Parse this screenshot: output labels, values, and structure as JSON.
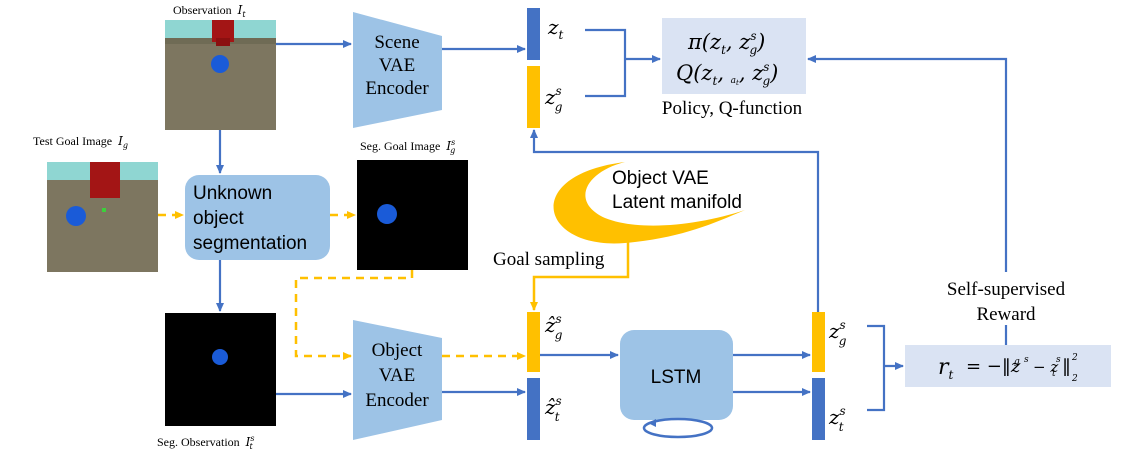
{
  "captions": {
    "observation": "Observation",
    "observation_sym": "I",
    "observation_sub": "t",
    "test_goal": "Test Goal Image",
    "test_goal_sym": "I",
    "test_goal_sub": "g",
    "seg_goal": "Seg. Goal Image",
    "seg_goal_sym": "I",
    "seg_goal_sub": "g",
    "seg_goal_sup": "s",
    "seg_obs": "Seg. Observation",
    "seg_obs_sym": "I",
    "seg_obs_sub": "t",
    "seg_obs_sup": "s"
  },
  "boxes": {
    "scene_encoder": [
      "Scene",
      "VAE",
      "Encoder"
    ],
    "object_encoder": [
      "Object",
      "VAE",
      "Encoder"
    ],
    "segmentation": [
      "Unknown",
      "object",
      "segmentation"
    ],
    "lstm": "LSTM",
    "manifold": [
      "Object VAE",
      "Latent manifold"
    ]
  },
  "labels": {
    "policy_caption": "Policy, Q-function",
    "goal_sampling": "Goal sampling",
    "reward_line1": "Self-supervised",
    "reward_line2": "Reward",
    "policy_pi": "π(z",
    "policy_q": "Q(z",
    "reward_eq": "= −‖z",
    "z_t": "z",
    "z_g_s": "z",
    "hat_z_g": "ẑ",
    "hat_z_t": "ẑ",
    "sub_t": "t",
    "sub_g": "g",
    "sup_s": "s",
    "r": "r",
    "norm_sub": "2",
    "norm_sup": "2",
    "policy_mid": ", z",
    "policy_close": ")",
    "q_at": "a",
    "reward_minus": "− z"
  },
  "colors": {
    "arrow_blue": "#4472c4",
    "goal_yellow": "#ffc000",
    "box_blue": "#9dc3e6",
    "result_box": "#dae3f3",
    "latent_blue": "#4472c4"
  }
}
